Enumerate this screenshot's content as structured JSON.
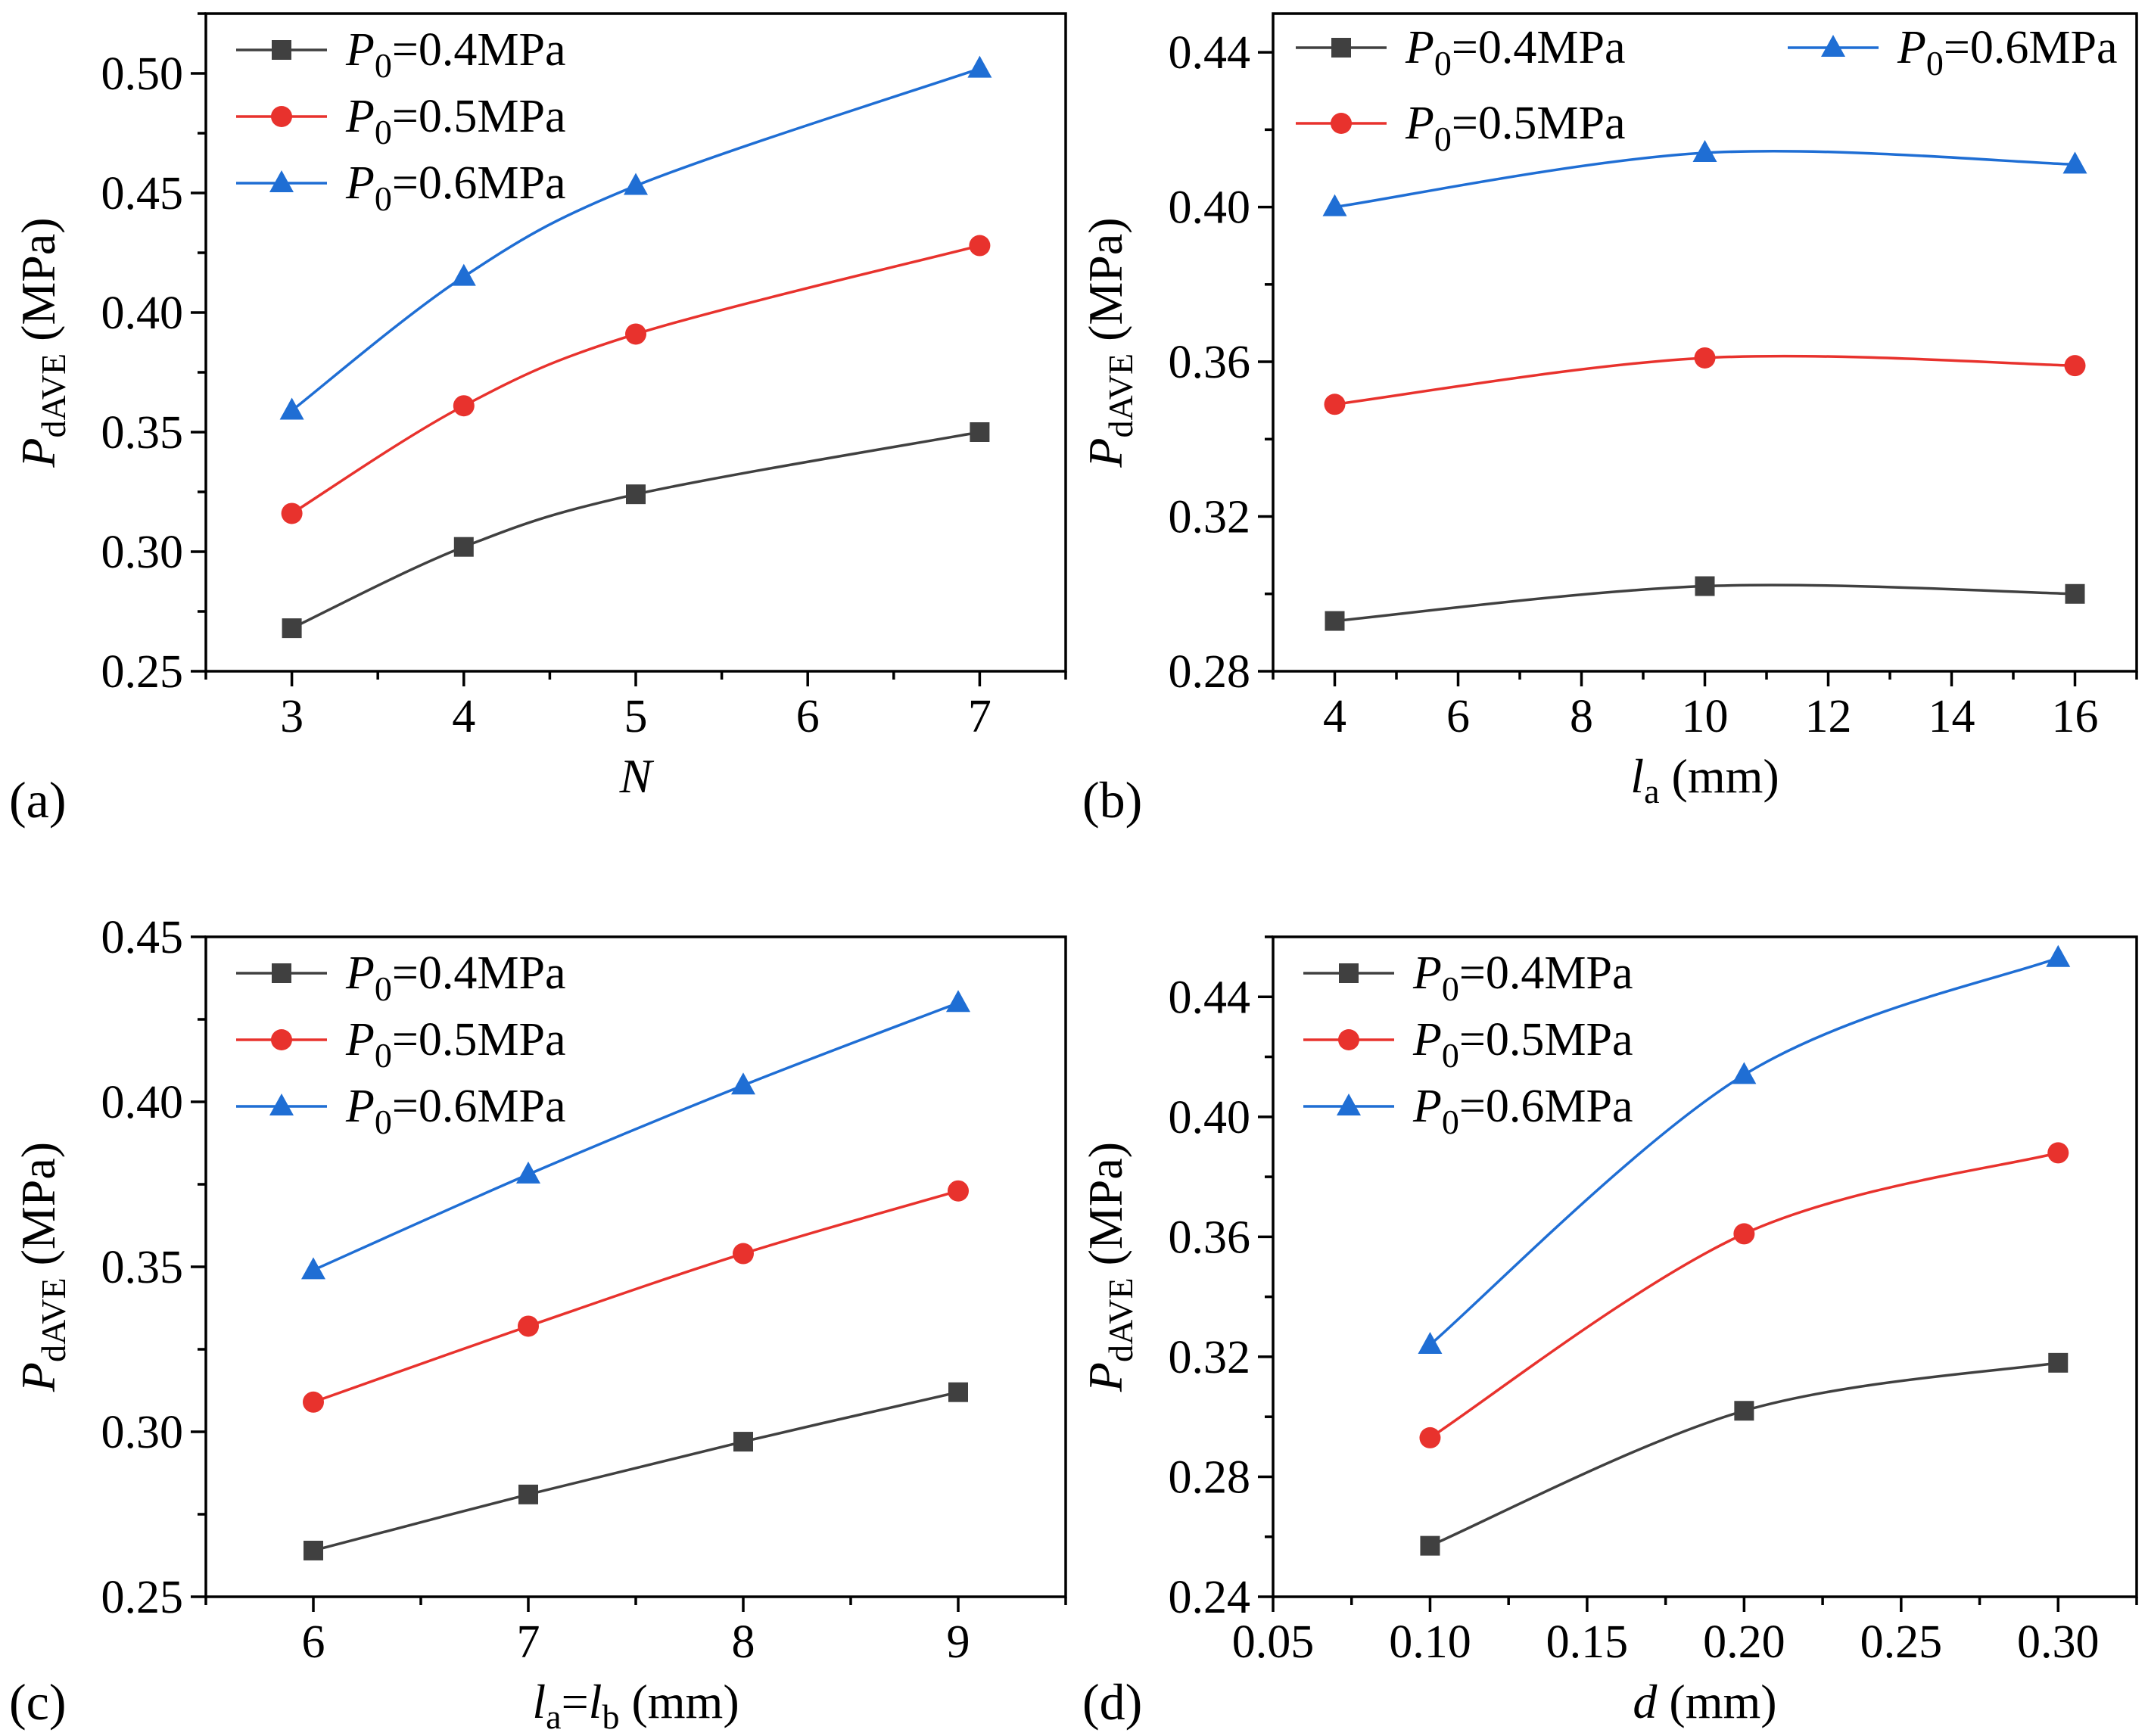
{
  "chart_data": [
    {
      "type": "line",
      "panel_label": "(a)",
      "xlabel": {
        "main": "N",
        "sub": "",
        "tail": "",
        "italic": true
      },
      "ylabel": {
        "main": "P",
        "sub": "dAVE",
        "tail": " (MPa)"
      },
      "xlim": [
        2.5,
        7.5
      ],
      "ylim": [
        0.25,
        0.525
      ],
      "xticks": [
        3,
        4,
        5,
        6,
        7
      ],
      "xtick_labels": [
        "3",
        "4",
        "5",
        "6",
        "7"
      ],
      "yticks": [
        0.25,
        0.3,
        0.35,
        0.4,
        0.45,
        0.5
      ],
      "ytick_labels": [
        "0.25",
        "0.30",
        "0.35",
        "0.40",
        "0.45",
        "0.50"
      ],
      "legend_columns": 1,
      "legend_placement": "top-left",
      "series": [
        {
          "name": "P0=0.4MPa",
          "name_parts": [
            "P",
            "0",
            "=0.4MPa"
          ],
          "color": "#404040",
          "marker": "square",
          "x": [
            3,
            4,
            5,
            7
          ],
          "y": [
            0.268,
            0.302,
            0.324,
            0.35
          ]
        },
        {
          "name": "P0=0.5MPa",
          "name_parts": [
            "P",
            "0",
            "=0.5MPa"
          ],
          "color": "#e8322d",
          "marker": "circle",
          "x": [
            3,
            4,
            5,
            7
          ],
          "y": [
            0.316,
            0.361,
            0.391,
            0.428
          ]
        },
        {
          "name": "P0=0.6MPa",
          "name_parts": [
            "P",
            "0",
            "=0.6MPa"
          ],
          "color": "#1f6ed4",
          "marker": "triangle",
          "x": [
            3,
            4,
            5,
            7
          ],
          "y": [
            0.359,
            0.415,
            0.453,
            0.502
          ]
        }
      ]
    },
    {
      "type": "line",
      "panel_label": "(b)",
      "xlabel": {
        "main": "l",
        "sub": "a",
        "tail": " (mm)",
        "italic": true
      },
      "ylabel": {
        "main": "P",
        "sub": "dAVE",
        "tail": " (MPa)"
      },
      "xlim": [
        3,
        17
      ],
      "ylim": [
        0.28,
        0.45
      ],
      "xticks": [
        4,
        6,
        8,
        10,
        12,
        14,
        16
      ],
      "xtick_labels": [
        "4",
        "6",
        "8",
        "10",
        "12",
        "14",
        "16"
      ],
      "yticks": [
        0.28,
        0.32,
        0.36,
        0.4,
        0.44
      ],
      "ytick_labels": [
        "0.28",
        "0.32",
        "0.36",
        "0.40",
        "0.44"
      ],
      "legend_columns": 2,
      "legend_placement": "top",
      "series": [
        {
          "name": "P0=0.4MPa",
          "name_parts": [
            "P",
            "0",
            "=0.4MPa"
          ],
          "color": "#404040",
          "marker": "square",
          "x": [
            4,
            10,
            16
          ],
          "y": [
            0.293,
            0.302,
            0.3
          ]
        },
        {
          "name": "P0=0.5MPa",
          "name_parts": [
            "P",
            "0",
            "=0.5MPa"
          ],
          "color": "#e8322d",
          "marker": "circle",
          "x": [
            4,
            10,
            16
          ],
          "y": [
            0.349,
            0.361,
            0.359
          ]
        },
        {
          "name": "P0=0.6MPa",
          "name_parts": [
            "P",
            "0",
            "=0.6MPa"
          ],
          "color": "#1f6ed4",
          "marker": "triangle",
          "x": [
            4,
            10,
            16
          ],
          "y": [
            0.4,
            0.414,
            0.411
          ]
        }
      ]
    },
    {
      "type": "line",
      "panel_label": "(c)",
      "xlabel": {
        "main": "l",
        "sub": "a",
        "tail": "=",
        "main2": "l",
        "sub2": "b",
        "tail2": " (mm)",
        "italic": true
      },
      "ylabel": {
        "main": "P",
        "sub": "dAVE",
        "tail": " (MPa)"
      },
      "xlim": [
        5.5,
        9.5
      ],
      "ylim": [
        0.25,
        0.45
      ],
      "xticks": [
        6,
        7,
        8,
        9
      ],
      "xtick_labels": [
        "6",
        "7",
        "8",
        "9"
      ],
      "yticks": [
        0.25,
        0.3,
        0.35,
        0.4,
        0.45
      ],
      "ytick_labels": [
        "0.25",
        "0.30",
        "0.35",
        "0.40",
        "0.45"
      ],
      "legend_columns": 1,
      "legend_placement": "top-left",
      "series": [
        {
          "name": "P0=0.4MPa",
          "name_parts": [
            "P",
            "0",
            "=0.4MPa"
          ],
          "color": "#404040",
          "marker": "square",
          "x": [
            6,
            7,
            8,
            9
          ],
          "y": [
            0.264,
            0.281,
            0.297,
            0.312
          ]
        },
        {
          "name": "P0=0.5MPa",
          "name_parts": [
            "P",
            "0",
            "=0.5MPa"
          ],
          "color": "#e8322d",
          "marker": "circle",
          "x": [
            6,
            7,
            8,
            9
          ],
          "y": [
            0.309,
            0.332,
            0.354,
            0.373
          ]
        },
        {
          "name": "P0=0.6MPa",
          "name_parts": [
            "P",
            "0",
            "=0.6MPa"
          ],
          "color": "#1f6ed4",
          "marker": "triangle",
          "x": [
            6,
            7,
            8,
            9
          ],
          "y": [
            0.349,
            0.378,
            0.405,
            0.43
          ]
        }
      ]
    },
    {
      "type": "line",
      "panel_label": "(d)",
      "xlabel": {
        "main": "d",
        "sub": "",
        "tail": " (mm)",
        "italic": true
      },
      "ylabel": {
        "main": "P",
        "sub": "dAVE",
        "tail": " (MPa)"
      },
      "xlim": [
        0.05,
        0.325
      ],
      "ylim": [
        0.24,
        0.46
      ],
      "xticks": [
        0.05,
        0.1,
        0.15,
        0.2,
        0.25,
        0.3
      ],
      "xtick_labels": [
        "0.05",
        "0.10",
        "0.15",
        "0.20",
        "0.25",
        "0.30"
      ],
      "yticks": [
        0.24,
        0.28,
        0.32,
        0.36,
        0.4,
        0.44
      ],
      "ytick_labels": [
        "0.24",
        "0.28",
        "0.32",
        "0.36",
        "0.40",
        "0.44"
      ],
      "legend_columns": 1,
      "legend_placement": "top-left",
      "series": [
        {
          "name": "P0=0.4MPa",
          "name_parts": [
            "P",
            "0",
            "=0.4MPa"
          ],
          "color": "#404040",
          "marker": "square",
          "x": [
            0.1,
            0.2,
            0.3
          ],
          "y": [
            0.257,
            0.302,
            0.318
          ]
        },
        {
          "name": "P0=0.5MPa",
          "name_parts": [
            "P",
            "0",
            "=0.5MPa"
          ],
          "color": "#e8322d",
          "marker": "circle",
          "x": [
            0.1,
            0.2,
            0.3
          ],
          "y": [
            0.293,
            0.361,
            0.388
          ]
        },
        {
          "name": "P0=0.6MPa",
          "name_parts": [
            "P",
            "0",
            "=0.6MPa"
          ],
          "color": "#1f6ed4",
          "marker": "triangle",
          "x": [
            0.1,
            0.2,
            0.3
          ],
          "y": [
            0.324,
            0.414,
            0.453
          ]
        }
      ]
    }
  ]
}
